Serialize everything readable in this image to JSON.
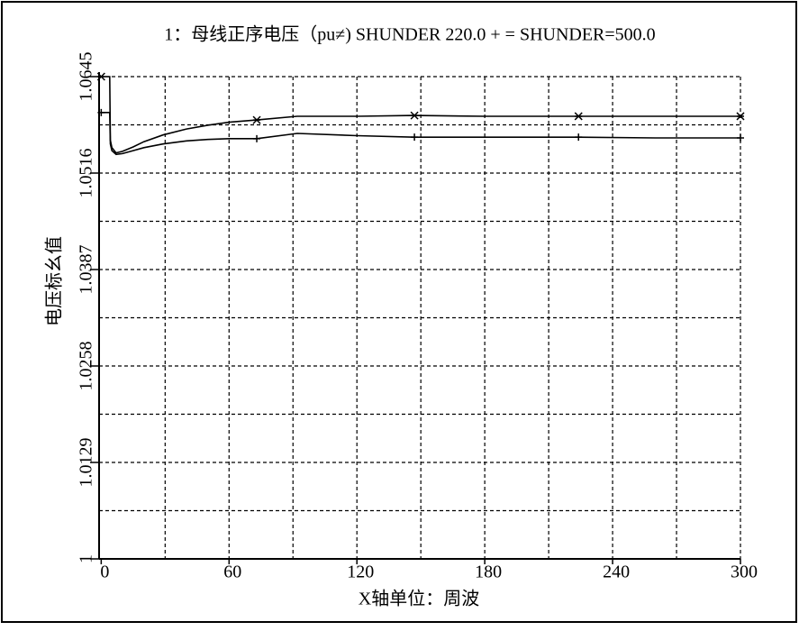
{
  "chart_data": {
    "type": "line",
    "title": "1：母线正序电压（pu≠) SHUNDER  220.0  +  =  SHUNDER=500.0",
    "x_label": "X轴单位：周波",
    "y_label": "电压标幺值",
    "x": [
      0,
      4,
      4.3,
      5,
      7,
      10,
      15,
      20,
      29,
      40,
      50,
      60,
      73,
      92,
      120,
      147,
      180,
      224,
      260,
      300
    ],
    "series": [
      {
        "color": "#000000",
        "marker": "x",
        "values": [
          1.0645,
          1.0645,
          1.056,
          1.055,
          1.0543,
          1.0545,
          1.0551,
          1.0558,
          1.0567,
          1.0575,
          1.058,
          1.0584,
          1.0587,
          1.0592,
          1.0592,
          1.0593,
          1.0592,
          1.0592,
          1.0592,
          1.0592
        ]
      },
      {
        "color": "#000000",
        "marker": "+",
        "values": [
          1.0597,
          1.0597,
          1.0555,
          1.0546,
          1.0541,
          1.0542,
          1.0546,
          1.055,
          1.0555,
          1.0559,
          1.0561,
          1.0562,
          1.0562,
          1.0569,
          1.0566,
          1.0564,
          1.0564,
          1.0564,
          1.0563,
          1.0563
        ]
      }
    ],
    "marker_x": [
      0,
      73,
      147,
      224,
      300
    ],
    "xlim": [
      -1,
      300
    ],
    "xticks": [
      0,
      60,
      120,
      180,
      240,
      300
    ],
    "xgrid": [
      30,
      90,
      150,
      210,
      270
    ],
    "ylim": [
      1,
      1.0645
    ],
    "yticks": [
      1,
      1.0129,
      1.0258,
      1.0387,
      1.0516,
      1.0645
    ],
    "ygrid": [
      1.00645,
      1.01935,
      1.03225,
      1.04515,
      1.05805
    ],
    "grid": true
  }
}
